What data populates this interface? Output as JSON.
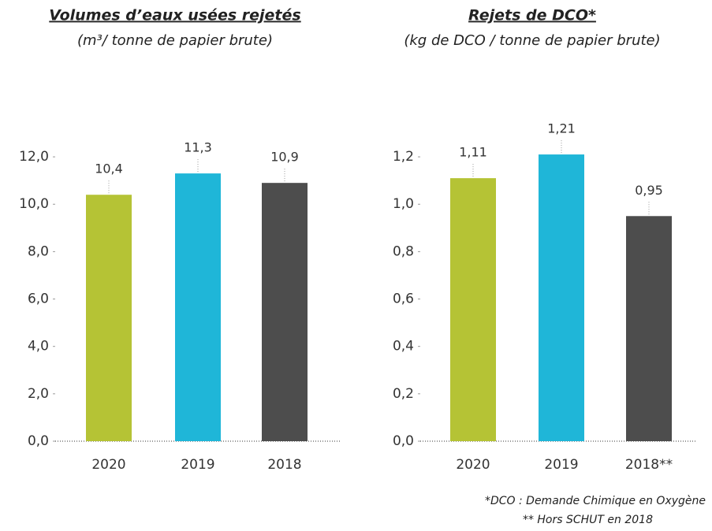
{
  "chart_data": [
    {
      "type": "bar",
      "title": "Volumes d’eaux usées rejetés",
      "subtitle": "(m³/ tonne de papier brute)",
      "categories": [
        "2020",
        "2019",
        "2018"
      ],
      "values": [
        10.4,
        11.3,
        10.9
      ],
      "value_labels": [
        "10,4",
        "11,3",
        "10,9"
      ],
      "colors": [
        "#b5c335",
        "#1fb6d8",
        "#4d4d4d"
      ],
      "ylim": [
        0,
        13
      ],
      "yticks": [
        {
          "value": 0,
          "label": "0,0"
        },
        {
          "value": 2,
          "label": "2,0"
        },
        {
          "value": 4,
          "label": "4,0"
        },
        {
          "value": 6,
          "label": "6,0"
        },
        {
          "value": 8,
          "label": "8,0"
        },
        {
          "value": 10,
          "label": "10,0"
        },
        {
          "value": 12,
          "label": "12,0"
        }
      ]
    },
    {
      "type": "bar",
      "title": "Rejets de DCO*",
      "subtitle": "(kg de DCO / tonne de papier brute)",
      "categories": [
        "2020",
        "2019",
        "2018**"
      ],
      "values": [
        1.11,
        1.21,
        0.95
      ],
      "value_labels": [
        "1,11",
        "1,21",
        "0,95"
      ],
      "colors": [
        "#b5c335",
        "#1fb6d8",
        "#4d4d4d"
      ],
      "ylim": [
        0,
        1.3
      ],
      "yticks": [
        {
          "value": 0,
          "label": "0,0"
        },
        {
          "value": 0.2,
          "label": "0,2"
        },
        {
          "value": 0.4,
          "label": "0,4"
        },
        {
          "value": 0.6,
          "label": "0,6"
        },
        {
          "value": 0.8,
          "label": "0,8"
        },
        {
          "value": 1,
          "label": "1,0"
        },
        {
          "value": 1.2,
          "label": "1,2"
        }
      ]
    }
  ],
  "notes": [
    "*DCO : Demande Chimique en Oxygène",
    "** Hors SCHUT en 2018"
  ]
}
